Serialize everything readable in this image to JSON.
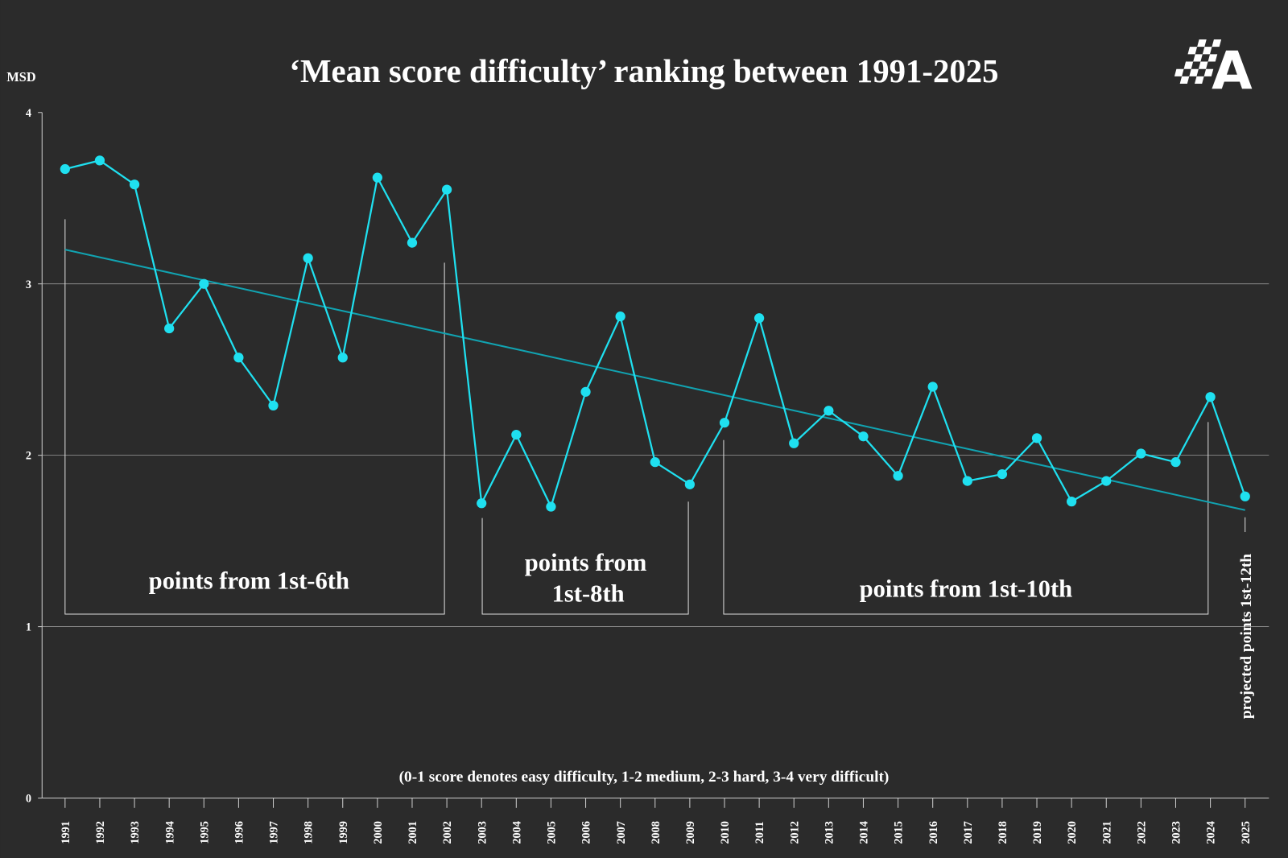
{
  "chart_data": {
    "type": "line",
    "title": "‘Mean score difficulty’ ranking between 1991-2025",
    "ylabel": "MSD",
    "xlabel": "",
    "ylim": [
      0,
      4
    ],
    "yticks": [
      "0",
      "1",
      "2",
      "3",
      "4"
    ],
    "grid": "horizontal",
    "categories": [
      "1991",
      "1992",
      "1993",
      "1994",
      "1995",
      "1996",
      "1997",
      "1998",
      "1999",
      "2000",
      "2001",
      "2002",
      "2003",
      "2004",
      "2005",
      "2006",
      "2007",
      "2008",
      "2009",
      "2010",
      "2011",
      "2012",
      "2013",
      "2014",
      "2015",
      "2016",
      "2017",
      "2018",
      "2019",
      "2020",
      "2021",
      "2022",
      "2023",
      "2024",
      "2025"
    ],
    "series": [
      {
        "values": [
          3.67,
          3.72,
          3.58,
          2.74,
          3.0,
          2.57,
          2.29,
          3.15,
          2.57,
          3.62,
          3.24,
          3.55,
          1.72,
          2.12,
          1.7,
          2.37,
          2.81,
          1.96,
          1.83,
          2.19,
          2.8,
          2.07,
          2.26,
          2.11,
          1.88,
          2.4,
          1.85,
          1.89,
          2.1,
          1.73,
          1.85,
          2.01,
          1.96,
          2.34,
          1.76
        ],
        "color": "#1fe0f0"
      }
    ],
    "trendline": {
      "start": [
        "1991",
        3.2
      ],
      "end": [
        "2025",
        1.68
      ],
      "color": "#11a3b1"
    },
    "annotations": {
      "era_1": "points from 1st-6th",
      "era_2_line1": "points from",
      "era_2_line2": "1st-8th",
      "era_3": "points from 1st-10th",
      "era_4": "projected points 1st-12th",
      "footnote": "(0-1 score denotes easy difficulty, 1-2 medium, 2-3 hard, 3-4 very difficult)"
    },
    "background": "#2b2b2b",
    "logo": "A"
  }
}
